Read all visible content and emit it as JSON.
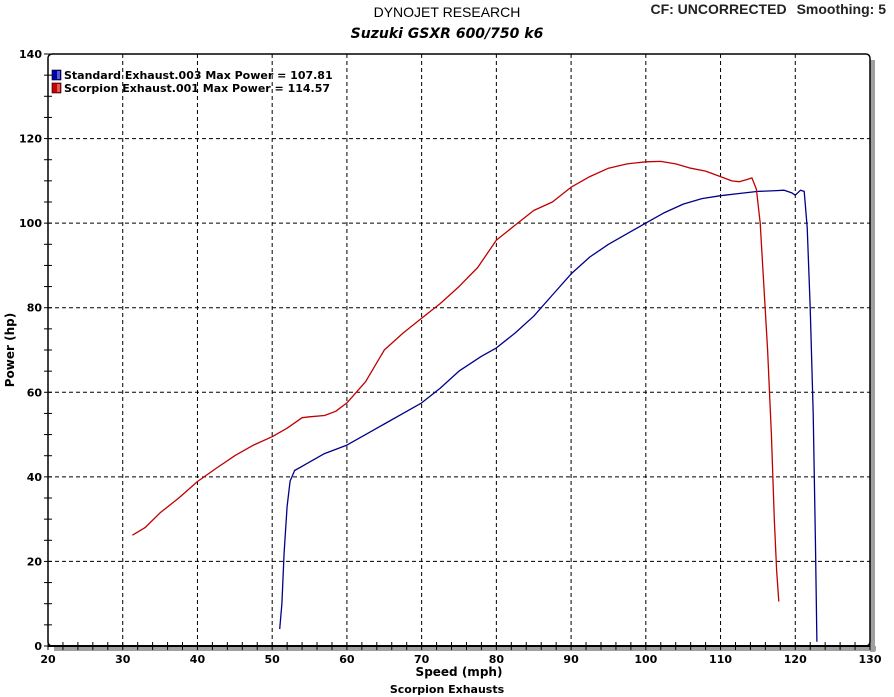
{
  "header": {
    "title": "DYNOJET RESEARCH",
    "subtitle": "Suzuki GSXR 600/750 k6",
    "cf_label": "CF: UNCORRECTED",
    "smoothing_label": "Smoothing: 5"
  },
  "footer": {
    "text": "Scorpion Exhausts"
  },
  "legend": [
    {
      "label": "Standard Exhaust.003 Max Power = 107.81",
      "color": "#0000aa"
    },
    {
      "label": "Scorpion Exhaust.001 Max Power = 114.57",
      "color": "#cc0000"
    }
  ],
  "colors": {
    "grid": "#000000",
    "shadow": "#a0a0a0",
    "standard": "#00008b",
    "scorpion": "#c00000"
  },
  "chart_data": {
    "type": "line",
    "title": "DYNOJET RESEARCH",
    "subtitle": "Suzuki GSXR 600/750 k6",
    "xlabel": "Speed (mph)",
    "ylabel": "Power (hp)",
    "xlim": [
      20,
      130
    ],
    "ylim": [
      0,
      140
    ],
    "xticks": [
      20,
      30,
      40,
      50,
      60,
      70,
      80,
      90,
      100,
      110,
      120,
      130
    ],
    "yticks": [
      0,
      20,
      40,
      60,
      80,
      100,
      120,
      140
    ],
    "grid": true,
    "legend_position": "top-left",
    "annotations": [
      "CF: UNCORRECTED",
      "Smoothing: 5",
      "Scorpion Exhausts"
    ],
    "series": [
      {
        "name": "Standard Exhaust.003",
        "max_power": 107.81,
        "color": "#00008b",
        "x": [
          51.0,
          51.3,
          51.6,
          52.0,
          52.4,
          53.0,
          54.0,
          55.0,
          57.0,
          60.0,
          62.5,
          65.0,
          67.5,
          70.0,
          72.5,
          75.0,
          78.0,
          80.0,
          82.5,
          85.0,
          87.5,
          90.0,
          92.5,
          95.0,
          97.5,
          100.0,
          102.5,
          105.0,
          107.5,
          110.0,
          112.5,
          115.0,
          117.5,
          118.5,
          119.5,
          120.0,
          120.7,
          121.2,
          121.6,
          122.0,
          122.4,
          122.7,
          122.9
        ],
        "y": [
          4.0,
          10.0,
          22.0,
          33.0,
          39.0,
          41.5,
          42.5,
          43.5,
          45.5,
          47.5,
          50.0,
          52.5,
          55.0,
          57.5,
          61.0,
          65.0,
          68.5,
          70.5,
          74.0,
          78.0,
          83.0,
          88.0,
          92.0,
          95.0,
          97.5,
          100.0,
          102.5,
          104.5,
          105.8,
          106.5,
          107.0,
          107.5,
          107.7,
          107.8,
          107.2,
          106.6,
          107.8,
          107.5,
          99.0,
          80.0,
          55.0,
          25.0,
          1.0
        ]
      },
      {
        "name": "Scorpion Exhaust.001",
        "max_power": 114.57,
        "color": "#c00000",
        "x": [
          31.3,
          33.0,
          35.0,
          37.5,
          40.0,
          42.5,
          45.0,
          47.5,
          50.0,
          52.0,
          54.0,
          55.0,
          57.0,
          58.5,
          60.0,
          62.5,
          65.0,
          67.5,
          70.0,
          72.5,
          75.0,
          77.5,
          80.0,
          82.5,
          85.0,
          87.5,
          90.0,
          92.5,
          95.0,
          97.5,
          100.0,
          102.0,
          104.0,
          106.0,
          108.0,
          110.0,
          111.5,
          112.5,
          113.5,
          114.2,
          114.8,
          115.3,
          115.8,
          116.3,
          116.8,
          117.2,
          117.5,
          117.8
        ],
        "y": [
          26.2,
          28.0,
          31.5,
          35.0,
          38.9,
          42.0,
          45.0,
          47.5,
          49.5,
          51.5,
          54.0,
          54.2,
          54.5,
          55.5,
          57.5,
          62.5,
          70.0,
          74.0,
          77.5,
          81.0,
          85.0,
          89.5,
          96.0,
          99.5,
          103.0,
          105.0,
          108.5,
          111.0,
          113.0,
          114.0,
          114.5,
          114.6,
          114.0,
          113.0,
          112.3,
          111.0,
          110.0,
          109.8,
          110.3,
          110.7,
          108.0,
          100.0,
          85.0,
          70.0,
          50.0,
          30.0,
          18.0,
          10.5
        ]
      }
    ]
  }
}
